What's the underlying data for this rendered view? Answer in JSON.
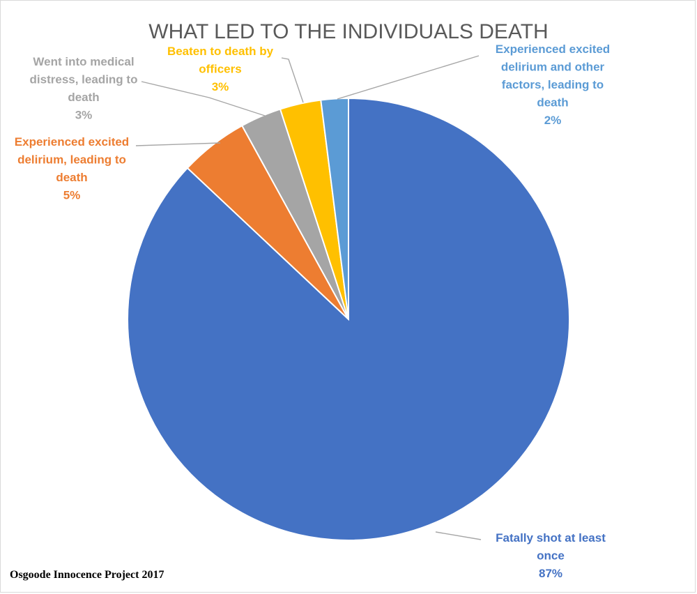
{
  "chart_data": {
    "type": "pie",
    "title": "WHAT LED TO THE INDIVIDUALS DEATH",
    "slices": [
      {
        "label_lines": [
          "Fatally shot at least",
          "once"
        ],
        "value": 87,
        "pct_label": "87%",
        "color": "#4472C4",
        "label_color": "#4472C4"
      },
      {
        "label_lines": [
          "Experienced excited",
          "delirium, leading to",
          "death"
        ],
        "value": 5,
        "pct_label": "5%",
        "color": "#ED7D31",
        "label_color": "#ED7D31"
      },
      {
        "label_lines": [
          "Went into medical",
          "distress, leading to",
          "death"
        ],
        "value": 3,
        "pct_label": "3%",
        "color": "#A5A5A5",
        "label_color": "#A5A5A5"
      },
      {
        "label_lines": [
          "Beaten to death by",
          "officers"
        ],
        "value": 3,
        "pct_label": "3%",
        "color": "#FFC000",
        "label_color": "#FFC000"
      },
      {
        "label_lines": [
          "Experienced excited",
          "delirium and other",
          "factors, leading to",
          "death"
        ],
        "value": 2,
        "pct_label": "2%",
        "color": "#5B9BD5",
        "label_color": "#5B9BD5"
      }
    ],
    "direction": "clockwise",
    "start_angle": "12 o'clock"
  },
  "source_note": "Osgoode Innocence Project 2017"
}
